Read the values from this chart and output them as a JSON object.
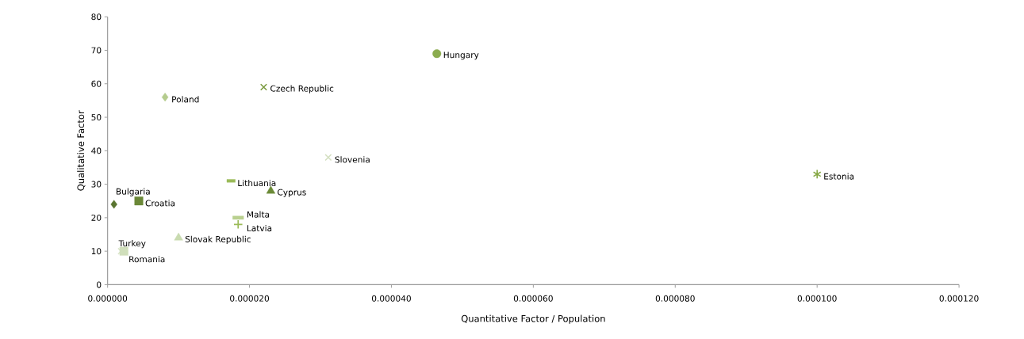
{
  "chart_data": {
    "type": "scatter",
    "xlabel": "Quantitative Factor / Population",
    "ylabel": "Qualitative Factor",
    "xlim": [
      0,
      0.00012
    ],
    "ylim": [
      0,
      80
    ],
    "xticks": [
      {
        "value": 0,
        "label": "0.000000"
      },
      {
        "value": 2e-05,
        "label": "0.000020"
      },
      {
        "value": 4e-05,
        "label": "0.000040"
      },
      {
        "value": 6e-05,
        "label": "0.000060"
      },
      {
        "value": 8e-05,
        "label": "0.000080"
      },
      {
        "value": 0.0001,
        "label": "0.000100"
      },
      {
        "value": 0.00012,
        "label": "0.000120"
      }
    ],
    "yticks": [
      0,
      10,
      20,
      30,
      40,
      50,
      60,
      70,
      80
    ],
    "grid": false,
    "series": [
      {
        "name": "Hungary",
        "color": "#8bac4f",
        "marker": "circle",
        "x": [
          4.64e-05
        ],
        "values": [
          69
        ]
      },
      {
        "name": "Czech Republic",
        "color": "#7a9a3e",
        "marker": "cross",
        "x": [
          2.2e-05
        ],
        "values": [
          59
        ]
      },
      {
        "name": "Poland",
        "color": "#b5cc8e",
        "marker": "diamond",
        "x": [
          8.1e-06
        ],
        "values": [
          56
        ]
      },
      {
        "name": "Slovenia",
        "color": "#d3dfc0",
        "marker": "cross",
        "x": [
          3.11e-05
        ],
        "values": [
          38
        ]
      },
      {
        "name": "Estonia",
        "color": "#86a845",
        "marker": "cross",
        "x": [
          0.0001
        ],
        "values": [
          33
        ]
      },
      {
        "name": "Lithuania",
        "color": "#9bbb59",
        "marker": "square",
        "x": [
          1.74e-05
        ],
        "values": [
          31
        ]
      },
      {
        "name": "Cyprus",
        "color": "#6b8a37",
        "marker": "triangle",
        "x": [
          2.3e-05
        ],
        "values": [
          28
        ]
      },
      {
        "name": "Bulgaria",
        "color": "#5a7530",
        "marker": "diamond",
        "x": [
          9e-07
        ],
        "values": [
          24
        ]
      },
      {
        "name": "Croatia",
        "color": "#6b8838",
        "marker": "square",
        "x": [
          4.4e-06
        ],
        "values": [
          25
        ]
      },
      {
        "name": "Malta",
        "color": "#b9d08f",
        "marker": "square",
        "x": [
          1.84e-05
        ],
        "values": [
          20
        ]
      },
      {
        "name": "Latvia",
        "color": "#9bbb59",
        "marker": "plus",
        "x": [
          1.84e-05
        ],
        "values": [
          18
        ]
      },
      {
        "name": "Slovak Republic",
        "color": "#c9dbb0",
        "marker": "triangle",
        "x": [
          1e-05
        ],
        "values": [
          14
        ]
      },
      {
        "name": "Turkey",
        "color": "#dde7cc",
        "marker": "cross",
        "x": [
          1.9e-06
        ],
        "values": [
          10
        ]
      },
      {
        "name": "Romania",
        "color": "#d0dfbb",
        "marker": "square",
        "x": [
          2.3e-06
        ],
        "values": [
          10
        ]
      }
    ]
  }
}
